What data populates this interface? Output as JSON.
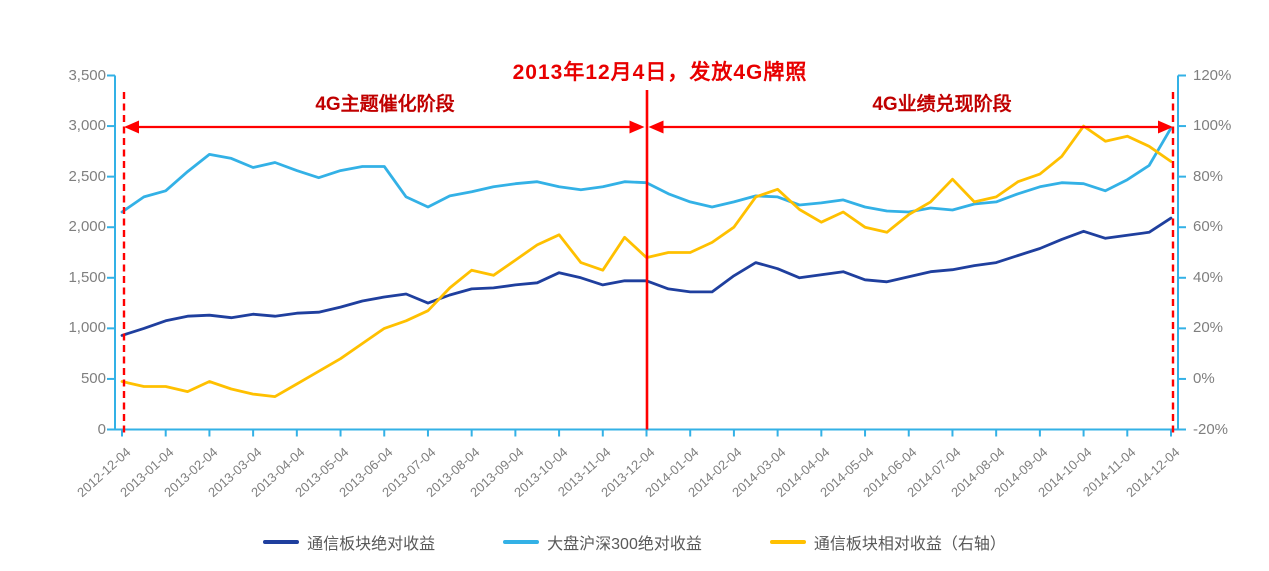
{
  "colors": {
    "background": "#ffffff",
    "axis_line": "#33b1e6",
    "axis_text": "#7f7f7f",
    "legend_text": "#595959",
    "event_line_red": "#ff0000",
    "title_red": "#e80000",
    "phase_text_red": "#c00000"
  },
  "annotations": {
    "license_event": {
      "text": "2013年12月4日，发放4G牌照",
      "tick_index": 12
    },
    "phase_left": {
      "text": "4G主题催化阶段",
      "from_tick": 0,
      "to_tick": 12
    },
    "phase_right": {
      "text": "4G业绩兑现阶段",
      "from_tick": 12,
      "to_tick": 24
    },
    "dashed_markers": {
      "tick_indices": [
        0,
        24
      ]
    }
  },
  "legend": {
    "items": [
      "通信板块绝对收益",
      "大盘沪深300绝对收益",
      "通信板块相对收益（右轴）"
    ]
  },
  "chart_data": {
    "type": "line",
    "title": "2013年12月4日，发放4G牌照",
    "x_tick_labels": [
      "2012-12-04",
      "2013-01-04",
      "2013-02-04",
      "2013-03-04",
      "2013-04-04",
      "2013-05-04",
      "2013-06-04",
      "2013-07-04",
      "2013-08-04",
      "2013-09-04",
      "2013-10-04",
      "2013-11-04",
      "2013-12-04",
      "2014-01-04",
      "2014-02-04",
      "2014-03-04",
      "2014-04-04",
      "2014-05-04",
      "2014-06-04",
      "2014-07-04",
      "2014-08-04",
      "2014-09-04",
      "2014-10-04",
      "2014-11-04",
      "2014-12-04"
    ],
    "points_per_tick_interval": 2,
    "left_axis": {
      "min": 0,
      "max": 3500,
      "tick_values": [
        0,
        500,
        1000,
        1500,
        2000,
        2500,
        3000,
        3500
      ],
      "tick_labels": [
        "0",
        "500",
        "1,000",
        "1,500",
        "2,000",
        "2,500",
        "3,000",
        "3,500"
      ]
    },
    "right_axis": {
      "min": -20,
      "max": 120,
      "tick_values": [
        -20,
        0,
        20,
        40,
        60,
        80,
        100,
        120
      ],
      "tick_labels": [
        "-20%",
        "0%",
        "20%",
        "40%",
        "60%",
        "80%",
        "100%",
        "120%"
      ]
    },
    "grid": false,
    "legend_position": "bottom",
    "series": [
      {
        "name": "通信板块绝对收益",
        "axis": "left",
        "color": "#1f3f9e",
        "values": [
          930,
          1000,
          1075,
          1120,
          1130,
          1105,
          1140,
          1120,
          1150,
          1160,
          1210,
          1270,
          1310,
          1340,
          1250,
          1330,
          1390,
          1400,
          1430,
          1450,
          1550,
          1500,
          1430,
          1470,
          1470,
          1390,
          1360,
          1360,
          1520,
          1650,
          1590,
          1500,
          1530,
          1560,
          1480,
          1460,
          1510,
          1560,
          1580,
          1620,
          1650,
          1720,
          1790,
          1880,
          1960,
          1890,
          1920,
          1950,
          2090
        ]
      },
      {
        "name": "大盘沪深300绝对收益",
        "axis": "left",
        "color": "#33b1e6",
        "values": [
          2150,
          2300,
          2360,
          2550,
          2720,
          2680,
          2590,
          2640,
          2560,
          2490,
          2560,
          2600,
          2600,
          2300,
          2200,
          2310,
          2350,
          2400,
          2430,
          2450,
          2400,
          2370,
          2400,
          2450,
          2440,
          2330,
          2250,
          2200,
          2250,
          2310,
          2300,
          2220,
          2240,
          2270,
          2200,
          2160,
          2150,
          2190,
          2170,
          2230,
          2250,
          2330,
          2400,
          2440,
          2430,
          2360,
          2470,
          2610,
          2980
        ]
      },
      {
        "name": "通信板块相对收益（右轴）",
        "axis": "right",
        "color": "#ffc000",
        "values": [
          -1,
          -3,
          -3,
          -5,
          -1,
          -4,
          -6,
          -7,
          -2,
          3,
          8,
          14,
          20,
          23,
          27,
          36,
          43,
          41,
          47,
          53,
          57,
          46,
          43,
          56,
          48,
          50,
          50,
          54,
          60,
          72,
          75,
          67,
          62,
          66,
          60,
          58,
          65,
          70,
          79,
          70,
          72,
          78,
          81,
          88,
          100,
          94,
          96,
          92,
          86
        ]
      }
    ]
  }
}
